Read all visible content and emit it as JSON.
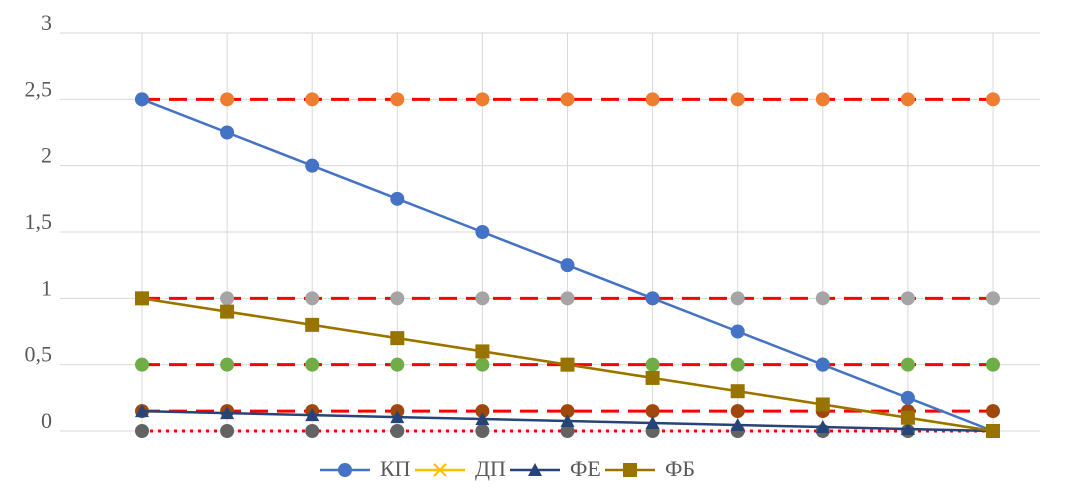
{
  "chart_data": {
    "type": "line",
    "categories": [
      null,
      null,
      null,
      null,
      null,
      null,
      null,
      null,
      null,
      null,
      null
    ],
    "ylim": [
      0,
      3
    ],
    "yticks": [
      0,
      {
        "value": 0.5,
        "label": "0,5"
      },
      1,
      {
        "value": 1.5,
        "label": "1,5"
      },
      2,
      {
        "value": 2.5,
        "label": "2,5"
      },
      3
    ],
    "grid": true,
    "legend": "bottom",
    "series": [
      {
        "color": "#ed7d31",
        "line_color": "#ff0000",
        "line_style": "dashed",
        "marker": "circle",
        "values": [
          2.5,
          2.5,
          2.5,
          2.5,
          2.5,
          2.5,
          2.5,
          2.5,
          2.5,
          2.5,
          2.5
        ]
      },
      {
        "color": "#a5a5a5",
        "line_color": "#ff0000",
        "line_style": "dashed",
        "marker": "circle",
        "values": [
          1,
          1,
          1,
          1,
          1,
          1,
          1,
          1,
          1,
          1,
          1
        ]
      },
      {
        "color": "#70ad47",
        "line_color": "#ff0000",
        "line_style": "dashed",
        "marker": "circle",
        "values": [
          0.5,
          0.5,
          0.5,
          0.5,
          0.5,
          0.5,
          0.5,
          0.5,
          0.5,
          0.5,
          0.5
        ]
      },
      {
        "color": "#9e480e",
        "line_color": "#ff0000",
        "line_style": "dashed",
        "marker": "circle",
        "values": [
          0.15,
          0.15,
          0.15,
          0.15,
          0.15,
          0.15,
          0.15,
          0.15,
          0.15,
          0.15,
          0.15
        ]
      },
      {
        "color": "#636363",
        "line_color": "#ff0000",
        "line_style": "dotted",
        "marker": "circle",
        "values": [
          0,
          0,
          0,
          0,
          0,
          0,
          0,
          0,
          0,
          0,
          0
        ]
      },
      {
        "name": "КП",
        "color": "#4472c4",
        "marker": "circle",
        "values": [
          2.5,
          2.25,
          2.0,
          1.75,
          1.5,
          1.25,
          1.0,
          0.75,
          0.5,
          0.25,
          0
        ]
      },
      {
        "name": "ДП",
        "color": "#ffc000",
        "marker": "x",
        "values": [
          1,
          0.9,
          0.8,
          0.7,
          0.6,
          0.5,
          0.4,
          0.3,
          0.2,
          0.1,
          0
        ]
      },
      {
        "name": "ФЕ",
        "color": "#264478",
        "marker": "triangle",
        "values": [
          0.15,
          0.135,
          0.12,
          0.105,
          0.09,
          0.075,
          0.06,
          0.045,
          0.03,
          0.015,
          0
        ]
      },
      {
        "name": "ФБ",
        "color": "#997300",
        "marker": "square",
        "values": [
          1,
          0.9,
          0.8,
          0.7,
          0.6,
          0.5,
          0.4,
          0.3,
          0.2,
          0.1,
          0
        ]
      }
    ]
  }
}
